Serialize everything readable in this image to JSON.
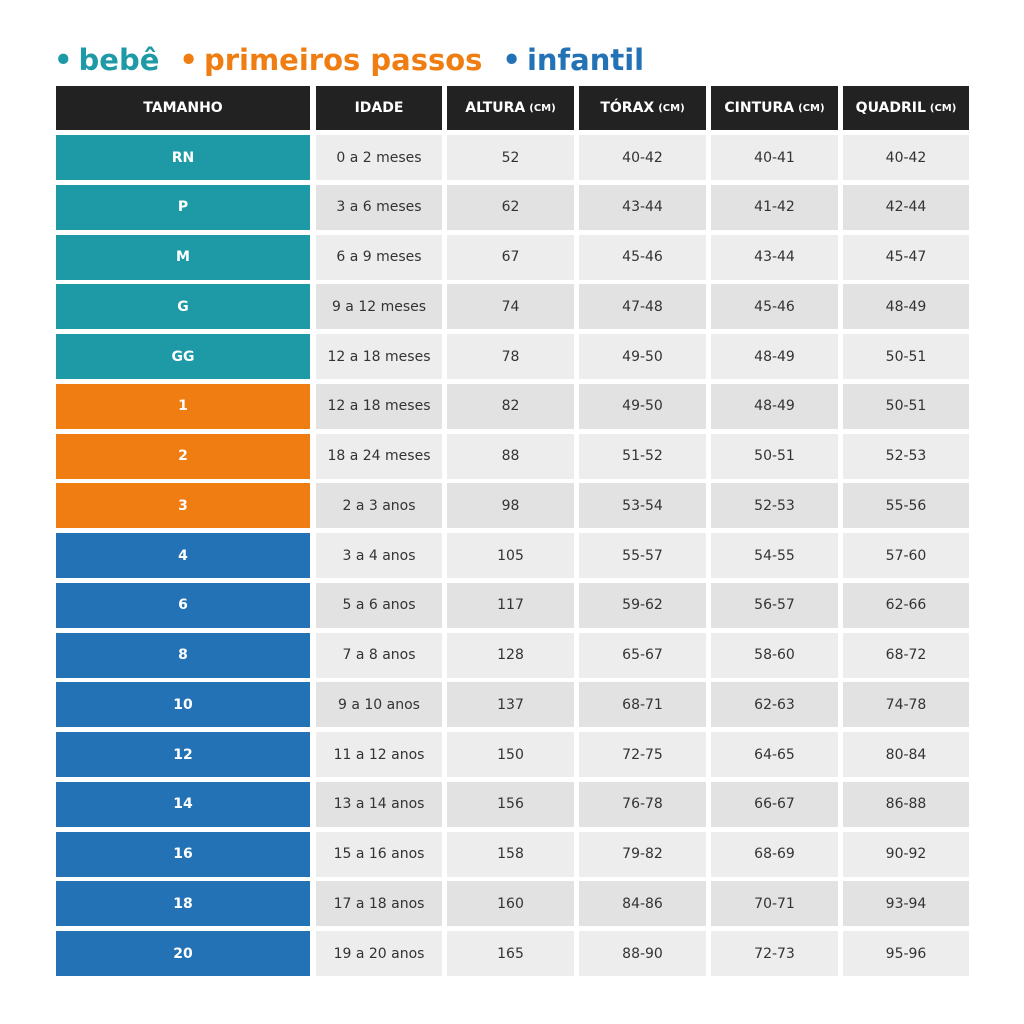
{
  "legend_bullet": "•",
  "table": {
    "header": [
      {
        "label": "TAMANHO"
      },
      {
        "label": "IDADE"
      },
      {
        "label": "ALTURA",
        "unit": "(CM)"
      },
      {
        "label": "TÓRAX",
        "unit": "(CM)"
      },
      {
        "label": "CINTURA",
        "unit": "(CM)"
      },
      {
        "label": "QUADRIL",
        "unit": "(CM)"
      }
    ],
    "groups": [
      {
        "label": "bebê",
        "color": "#1e9aa6",
        "rows": [
          [
            "RN",
            "0 a 2 meses",
            "52",
            "40-42",
            "40-41",
            "40-42"
          ],
          [
            "P",
            "3 a 6 meses",
            "62",
            "43-44",
            "41-42",
            "42-44"
          ],
          [
            "M",
            "6 a 9 meses",
            "67",
            "45-46",
            "43-44",
            "45-47"
          ],
          [
            "G",
            "9 a 12 meses",
            "74",
            "47-48",
            "45-46",
            "48-49"
          ],
          [
            "GG",
            "12 a 18 meses",
            "78",
            "49-50",
            "48-49",
            "50-51"
          ]
        ]
      },
      {
        "label": "primeiros passos",
        "color": "#ef7d12",
        "rows": [
          [
            "1",
            "12 a 18 meses",
            "82",
            "49-50",
            "48-49",
            "50-51"
          ],
          [
            "2",
            "18 a 24 meses",
            "88",
            "51-52",
            "50-51",
            "52-53"
          ],
          [
            "3",
            "2 a 3 anos",
            "98",
            "53-54",
            "52-53",
            "55-56"
          ]
        ]
      },
      {
        "label": "infantil",
        "color": "#2272b5",
        "rows": [
          [
            "4",
            "3 a 4 anos",
            "105",
            "55-57",
            "54-55",
            "57-60"
          ],
          [
            "6",
            "5 a 6 anos",
            "117",
            "59-62",
            "56-57",
            "62-66"
          ],
          [
            "8",
            "7 a 8 anos",
            "128",
            "65-67",
            "58-60",
            "68-72"
          ],
          [
            "10",
            "9 a 10 anos",
            "137",
            "68-71",
            "62-63",
            "74-78"
          ],
          [
            "12",
            "11 a 12 anos",
            "150",
            "72-75",
            "64-65",
            "80-84"
          ],
          [
            "14",
            "13 a 14 anos",
            "156",
            "76-78",
            "66-67",
            "86-88"
          ],
          [
            "16",
            "15 a 16 anos",
            "158",
            "79-82",
            "68-69",
            "90-92"
          ],
          [
            "18",
            "17 a 18 anos",
            "160",
            "84-86",
            "70-71",
            "93-94"
          ],
          [
            "20",
            "19 a 20 anos",
            "165",
            "88-90",
            "72-73",
            "95-96"
          ]
        ]
      }
    ]
  }
}
